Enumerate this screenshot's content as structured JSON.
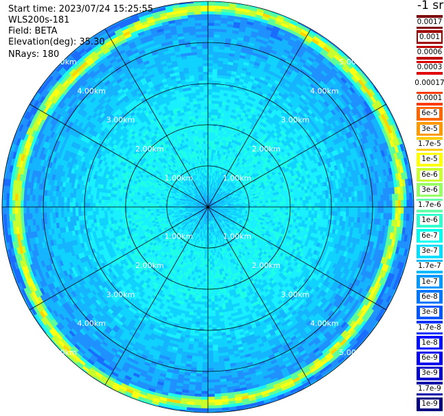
{
  "info": {
    "start_time": "Start time: 2023/07/24 15:25:55",
    "instrument": "WLS200s-181",
    "field": "Field: BETA",
    "elevation": "Elevation(deg): 35.30",
    "nrays": "NRays: 180"
  },
  "colorbar": {
    "unit": "-1 sr",
    "labels": [
      "0.0017",
      "0.001",
      "0.0006",
      "0.0003",
      "0.00017",
      "0.0001",
      "6e-5",
      "3e-5",
      "1.7e-5",
      "1e-5",
      "6e-6",
      "3e-6",
      "1.7e-6",
      "1e-6",
      "6e-7",
      "3e-7",
      "1.7e-7",
      "1e-7",
      "6e-8",
      "3e-8",
      "1.7e-8",
      "1e-8",
      "6e-9",
      "3e-9",
      "1.7e-9",
      "1e-9"
    ],
    "colors": [
      "#7f0000",
      "#a00000",
      "#c00000",
      "#e00000",
      "#ffffff",
      "#ff3a00",
      "#ff6600",
      "#ff9900",
      "#ffcc00",
      "#ffff00",
      "#ccff33",
      "#99ff66",
      "#66ffaa",
      "#33ffcc",
      "#00ffee",
      "#00ddff",
      "#00bbff",
      "#0099ff",
      "#0077ff",
      "#0055ff",
      "#0033ff",
      "#0011ff",
      "#0000ee",
      "#0000cc",
      "#0000aa",
      "#000080"
    ]
  },
  "chart_data": {
    "type": "heatmap",
    "title": "",
    "projection": "polar (PPI)",
    "range_rings_km": [
      1.0,
      2.0,
      3.0,
      4.0,
      5.0
    ],
    "range_ring_labels": [
      "1.00km",
      "2.00km",
      "3.00km",
      "4.00km",
      "5.00km"
    ],
    "spokes_deg": [
      0,
      30,
      60,
      90,
      120,
      150,
      180,
      210,
      240,
      270,
      300,
      330
    ],
    "max_range_km": 5.0,
    "field": "BETA",
    "elevation_deg": 35.3,
    "n_rays": 180,
    "approx_profile_vs_range_km": [
      {
        "range_km": 0.0,
        "beta": "1e-7"
      },
      {
        "range_km": 0.5,
        "beta": "6e-7"
      },
      {
        "range_km": 1.0,
        "beta": "1e-6"
      },
      {
        "range_km": 2.0,
        "beta": "1e-6"
      },
      {
        "range_km": 3.0,
        "beta": "6e-7"
      },
      {
        "range_km": 4.0,
        "beta": "3e-7"
      },
      {
        "range_km": 4.6,
        "beta": "1e-7"
      },
      {
        "range_km": 5.0,
        "beta": "1e-5"
      }
    ],
    "colorbar_min": "1e-9",
    "colorbar_max": "0.0017"
  }
}
